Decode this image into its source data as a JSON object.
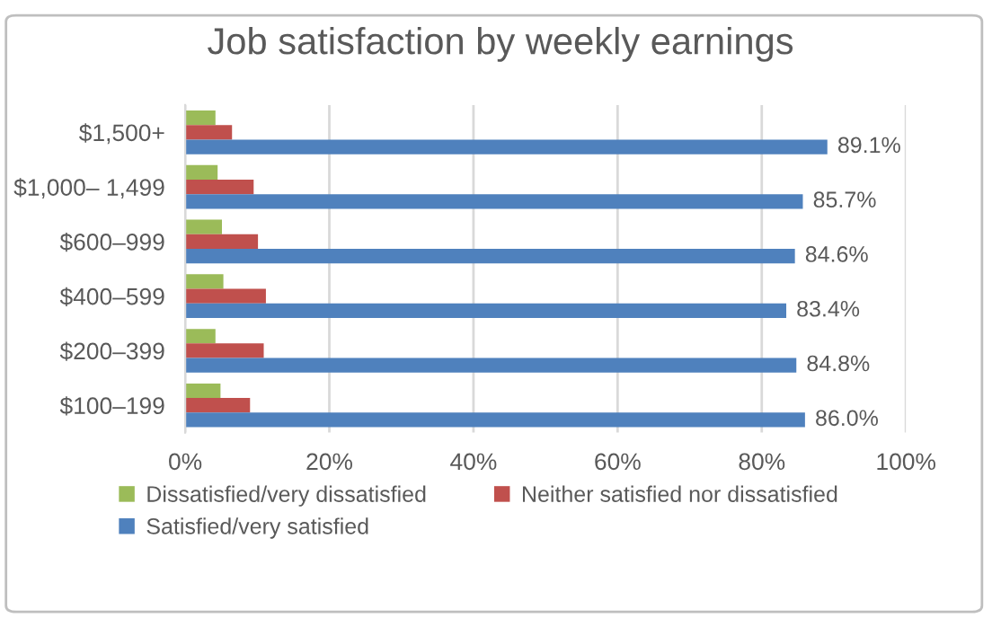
{
  "chart_data": {
    "type": "bar",
    "orientation": "horizontal",
    "title": "Job satisfaction by weekly earnings",
    "categories": [
      "$1,500+",
      "$1,000– 1,499",
      "$600–999",
      "$400–599",
      "$200–399",
      "$100–199"
    ],
    "series": [
      {
        "name": "Dissatisfied/very dissatisfied",
        "color": "#9bbb59",
        "values": [
          4.2,
          4.5,
          5.1,
          5.3,
          4.2,
          4.9
        ]
      },
      {
        "name": "Neither satisfied nor dissatisfied",
        "color": "#c0504d",
        "values": [
          6.5,
          9.5,
          10.1,
          11.2,
          10.9,
          9.0
        ]
      },
      {
        "name": "Satisfied/very satisfied",
        "color": "#4f81bd",
        "values": [
          89.1,
          85.7,
          84.6,
          83.4,
          84.8,
          86.0
        ],
        "value_labels": [
          "89.1%",
          "85.7%",
          "84.6%",
          "83.4%",
          "84.8%",
          "86.0%"
        ]
      }
    ],
    "xlim": [
      0,
      100
    ],
    "xticks": [
      {
        "value": 0,
        "label": "0%"
      },
      {
        "value": 20,
        "label": "20%"
      },
      {
        "value": 40,
        "label": "40%"
      },
      {
        "value": 60,
        "label": "60%"
      },
      {
        "value": 80,
        "label": "80%"
      },
      {
        "value": 100,
        "label": "100%"
      }
    ],
    "grid": "x",
    "legend": "bottom"
  }
}
